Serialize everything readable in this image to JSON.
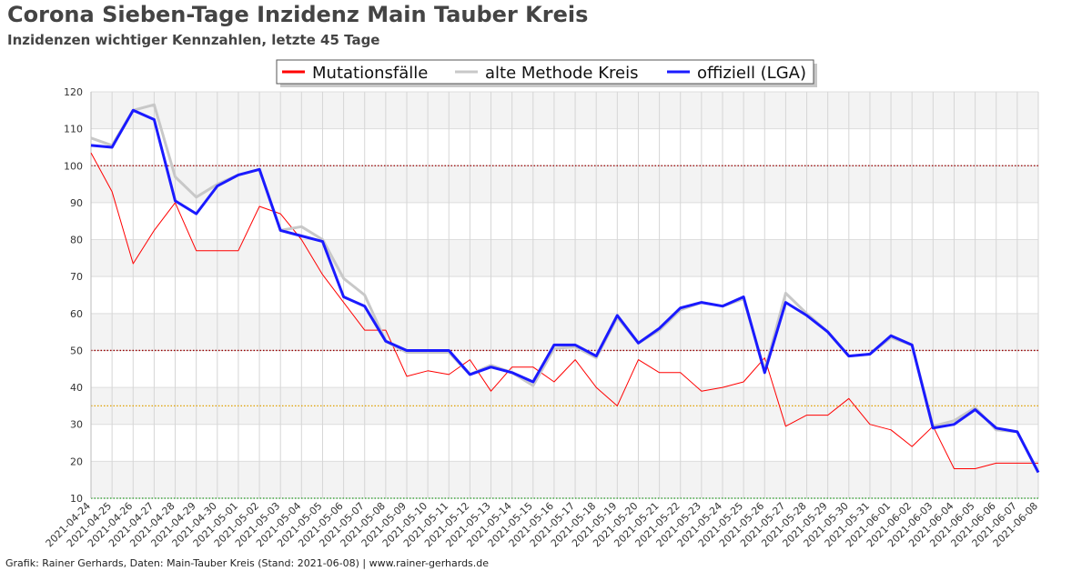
{
  "header": {
    "title": "Corona Sieben-Tage Inzidenz Main Tauber Kreis",
    "subtitle": "Inzidenzen wichtiger Kennzahlen, letzte 45 Tage"
  },
  "footer": {
    "credit": "Grafik: Rainer Gerhards, Daten: Main-Tauber Kreis (Stand: 2021-06-08) | www.rainer-gerhards.de"
  },
  "chart_data": {
    "type": "line",
    "title": "Corona Sieben-Tage Inzidenz Main Tauber Kreis",
    "subtitle": "Inzidenzen wichtiger Kennzahlen, letzte 45 Tage",
    "xlabel": "",
    "ylabel": "",
    "ylim": [
      10,
      120
    ],
    "yticks": [
      10,
      20,
      30,
      40,
      50,
      60,
      70,
      80,
      90,
      100,
      110,
      120
    ],
    "grid": true,
    "legend_position": "top-center",
    "x": [
      "2021-04-24",
      "2021-04-25",
      "2021-04-26",
      "2021-04-27",
      "2021-04-28",
      "2021-04-29",
      "2021-04-30",
      "2021-05-01",
      "2021-05-02",
      "2021-05-03",
      "2021-05-04",
      "2021-05-05",
      "2021-05-06",
      "2021-05-07",
      "2021-05-08",
      "2021-05-09",
      "2021-05-10",
      "2021-05-11",
      "2021-05-12",
      "2021-05-13",
      "2021-05-14",
      "2021-05-15",
      "2021-05-16",
      "2021-05-17",
      "2021-05-18",
      "2021-05-19",
      "2021-05-20",
      "2021-05-21",
      "2021-05-22",
      "2021-05-23",
      "2021-05-24",
      "2021-05-25",
      "2021-05-26",
      "2021-05-27",
      "2021-05-28",
      "2021-05-29",
      "2021-05-30",
      "2021-05-31",
      "2021-06-01",
      "2021-06-02",
      "2021-06-03",
      "2021-06-04",
      "2021-06-05",
      "2021-06-06",
      "2021-06-07",
      "2021-06-08"
    ],
    "series": [
      {
        "name": "Mutationsfälle",
        "color": "#ff0000",
        "width": 1,
        "values": [
          103.5,
          93,
          73.5,
          82.5,
          90,
          77,
          77,
          77,
          89,
          87,
          80,
          70.5,
          63,
          55.5,
          55.5,
          43,
          44.5,
          43.5,
          47.5,
          39,
          45.5,
          45.5,
          41.5,
          47.5,
          40,
          35,
          47.5,
          44,
          44,
          39,
          40,
          41.5,
          48,
          29.5,
          32.5,
          32.5,
          37,
          30,
          28.5,
          24,
          29.5,
          18,
          18,
          19.5,
          19.5,
          19.5
        ]
      },
      {
        "name": "alte Methode Kreis",
        "color": "#c8c8c8",
        "width": 3,
        "values": [
          107.5,
          105.5,
          115,
          116.5,
          97,
          91.5,
          95,
          97.5,
          99,
          82.5,
          83.5,
          80,
          69.5,
          65,
          52.5,
          49.5,
          49.5,
          49.5,
          43.5,
          46,
          44,
          40.5,
          50.5,
          51,
          48,
          59,
          52,
          55.5,
          61,
          63,
          62,
          64,
          44.5,
          65.5,
          60,
          55,
          48.5,
          49,
          53.5,
          51.5,
          29.5,
          31,
          34.5,
          28.5,
          28,
          17
        ]
      },
      {
        "name": "offiziell (LGA)",
        "color": "#1a1aff",
        "width": 3,
        "values": [
          105.5,
          105,
          115,
          112.5,
          90.5,
          87,
          94.5,
          97.5,
          99,
          82.5,
          81,
          79.5,
          64.5,
          62,
          52.5,
          50,
          50,
          50,
          43.5,
          45.5,
          44,
          41.5,
          51.5,
          51.5,
          48.5,
          59.5,
          52,
          56,
          61.5,
          63,
          62,
          64.5,
          44,
          63,
          59.5,
          55,
          48.5,
          49,
          54,
          51.5,
          29,
          30,
          34,
          29,
          28,
          17
        ]
      }
    ],
    "reference_lines": [
      {
        "value": 100,
        "color": "#990000",
        "style": "dotted"
      },
      {
        "value": 50,
        "color": "#990000",
        "style": "dotted"
      },
      {
        "value": 35,
        "color": "#e0a000",
        "style": "dotted"
      },
      {
        "value": 10,
        "color": "#229922",
        "style": "dotted"
      }
    ]
  }
}
